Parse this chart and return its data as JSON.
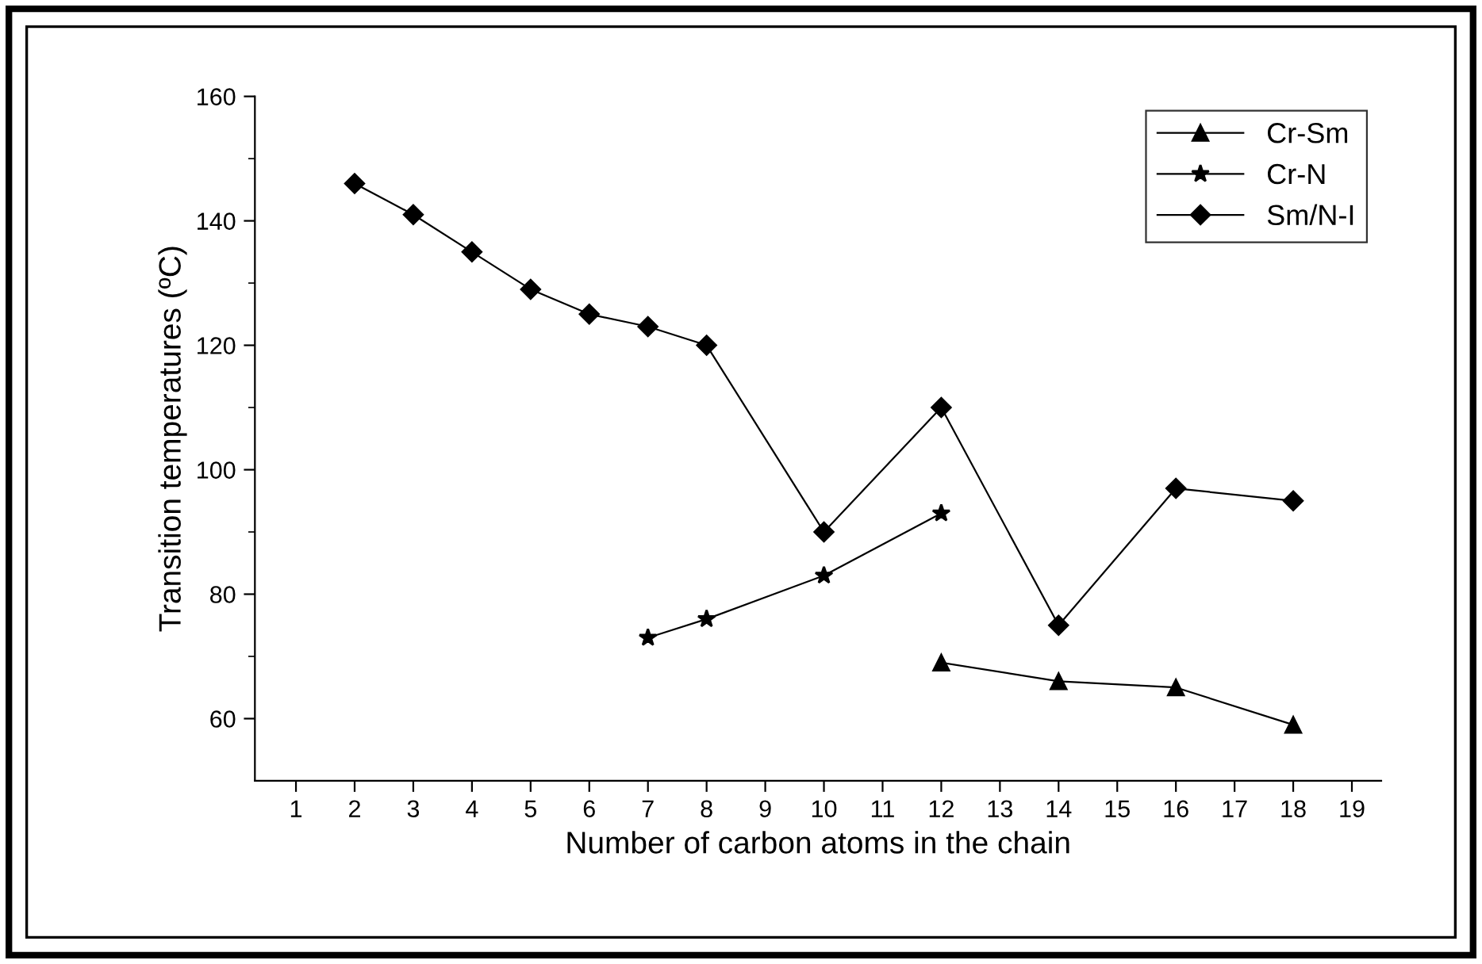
{
  "chart_data": {
    "type": "line",
    "xlabel": "Number of carbon atoms in the chain",
    "ylabel": "Transition temperatures (ºC)",
    "xlim": [
      0.3,
      19.5
    ],
    "xticks": [
      1,
      2,
      3,
      4,
      5,
      6,
      7,
      8,
      9,
      10,
      11,
      12,
      13,
      14,
      15,
      16,
      17,
      18,
      19
    ],
    "ylim": [
      50,
      160
    ],
    "yticks": [
      60,
      80,
      100,
      120,
      140,
      160
    ],
    "grid": false,
    "legend": "top right",
    "line_style": "solid",
    "series": [
      {
        "name": "Cr-Sm",
        "color": "#000000",
        "marker": "triangle",
        "x": [
          12,
          14,
          16,
          18
        ],
        "values": [
          69,
          66,
          65,
          59
        ]
      },
      {
        "name": "Cr-N",
        "color": "#000000",
        "marker": "star",
        "x": [
          7,
          8,
          10,
          12
        ],
        "values": [
          73,
          76,
          83,
          93
        ]
      },
      {
        "name": "Sm/N-I",
        "color": "#000000",
        "marker": "diamond",
        "x": [
          2,
          3,
          4,
          5,
          6,
          7,
          8,
          10,
          12,
          14,
          16,
          18
        ],
        "values": [
          146,
          141,
          135,
          129,
          125,
          123,
          120,
          90,
          110,
          75,
          97,
          95
        ]
      }
    ]
  }
}
